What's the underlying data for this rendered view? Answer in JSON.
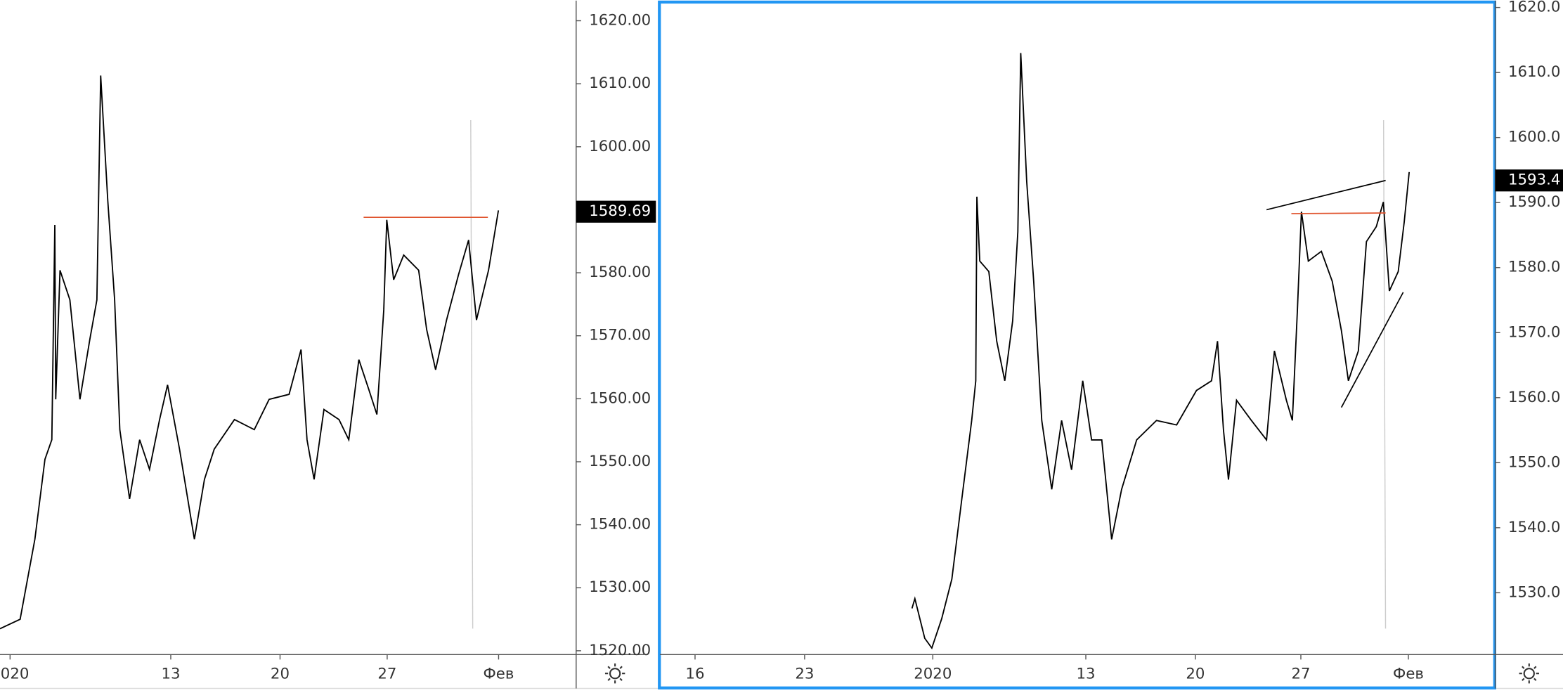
{
  "chart_data": [
    {
      "type": "line",
      "color": "#000000",
      "x": [
        -0.47,
        0.47,
        1.16,
        1.63,
        1.95,
        2.09,
        2.13,
        2.33,
        2.79,
        3.26,
        3.72,
        4.05,
        4.23,
        4.56,
        4.88,
        5.12,
        5.58,
        6.05,
        6.51,
        6.98,
        7.35,
        7.91,
        8.6,
        9.07,
        9.53,
        10.47,
        11.4,
        12.09,
        13.02,
        13.58,
        13.86,
        14.19,
        14.65,
        15.35,
        15.81,
        16.28,
        16.74,
        17.12,
        17.44,
        17.58,
        17.9,
        18.37,
        19.07,
        19.44,
        19.86,
        20.37,
        20.93,
        21.4,
        21.77,
        22.33,
        22.79
      ],
      "values": [
        1523.5,
        1525,
        1537.7,
        1550.4,
        1553.5,
        1587.6,
        1559.9,
        1580.4,
        1575.7,
        1559.9,
        1569.4,
        1575.7,
        1611.3,
        1591.5,
        1575.7,
        1555.1,
        1544.1,
        1553.5,
        1548.8,
        1556.7,
        1562.2,
        1552,
        1537.7,
        1547.2,
        1552,
        1556.7,
        1555.1,
        1559.9,
        1560.7,
        1567.8,
        1553.5,
        1547.2,
        1558.3,
        1556.7,
        1553.5,
        1566.2,
        1561.5,
        1557.5,
        1574.1,
        1588.4,
        1578.9,
        1582.8,
        1580.4,
        1571,
        1564.6,
        1572.5,
        1579.7,
        1585.2,
        1572.5,
        1580.4,
        1589.9
      ],
      "xlim": [
        -0.47,
        26.42
      ],
      "ylim": [
        1519.4,
        1623.2
      ],
      "xticks": [
        {
          "value": 0,
          "label": "2020"
        },
        {
          "value": 7.5,
          "label": "13"
        },
        {
          "value": 12.6,
          "label": "20"
        },
        {
          "value": 17.6,
          "label": "27"
        },
        {
          "value": 22.8,
          "label": "Фев"
        }
      ],
      "yticks": [
        {
          "value": 1520,
          "label": "1520.00"
        },
        {
          "value": 1530,
          "label": "1530.00"
        },
        {
          "value": 1540,
          "label": "1540.00"
        },
        {
          "value": 1550,
          "label": "1550.00"
        },
        {
          "value": 1560,
          "label": "1560.00"
        },
        {
          "value": 1570,
          "label": "1570.00"
        },
        {
          "value": 1580,
          "label": "1580.00"
        },
        {
          "value": 1590,
          "label": "1590.00"
        },
        {
          "value": 1600,
          "label": "1600.00"
        },
        {
          "value": 1610,
          "label": "1610.00"
        },
        {
          "value": 1620,
          "label": "1620.00"
        }
      ],
      "last_price": 1589.69,
      "drawings": [
        {
          "color": "#e0542e",
          "x": [
            16.5,
            22.3
          ],
          "values": [
            1588.8,
            1588.8
          ]
        }
      ],
      "marker_x": 21.5
    },
    {
      "type": "line",
      "color": "#000000",
      "x": [
        -1.01,
        -0.87,
        -0.39,
        -0.05,
        0.43,
        0.92,
        1.4,
        1.88,
        2.08,
        2.13,
        2.27,
        2.71,
        3.09,
        3.48,
        3.86,
        4.11,
        4.25,
        4.54,
        4.88,
        5.27,
        5.75,
        6.23,
        6.71,
        7.25,
        7.68,
        8.17,
        8.65,
        9.13,
        9.86,
        10.82,
        11.79,
        12.75,
        13.48,
        13.77,
        14.06,
        14.3,
        14.69,
        15.41,
        16.14,
        16.52,
        17.1,
        17.39,
        17.63,
        17.83,
        18.16,
        18.79,
        19.32,
        19.76,
        20.1,
        20.58,
        20.97,
        21.45,
        21.79,
        22.08,
        22.51,
        22.8,
        23.04
      ],
      "values": [
        1527.6,
        1529.1,
        1523,
        1521.5,
        1526,
        1532.1,
        1544.3,
        1556.5,
        1562.6,
        1590.9,
        1581,
        1579.4,
        1568.7,
        1562.6,
        1571.8,
        1585.5,
        1613,
        1593.2,
        1577.9,
        1556.5,
        1545.9,
        1556.5,
        1548.9,
        1562.6,
        1553.5,
        1553.5,
        1538.2,
        1545.9,
        1553.5,
        1556.5,
        1555.8,
        1561.1,
        1562.6,
        1568.7,
        1555,
        1547.4,
        1559.6,
        1556.5,
        1553.5,
        1567.2,
        1559.6,
        1556.5,
        1573.3,
        1588.6,
        1581,
        1582.5,
        1577.9,
        1570.3,
        1562.6,
        1567.2,
        1584,
        1586.3,
        1590.1,
        1576.4,
        1579.4,
        1587,
        1594.7
      ],
      "xlim": [
        -13.2,
        27.2
      ],
      "ylim": [
        1520.5,
        1620.6
      ],
      "xticks": [
        {
          "value": -11.5,
          "label": "16"
        },
        {
          "value": -6.2,
          "label": "23"
        },
        {
          "value": 0,
          "label": "2020"
        },
        {
          "value": 7.4,
          "label": "13"
        },
        {
          "value": 12.7,
          "label": "20"
        },
        {
          "value": 17.8,
          "label": "27"
        },
        {
          "value": 23,
          "label": "Фев"
        }
      ],
      "yticks": [
        {
          "value": 1530,
          "label": "1530.0"
        },
        {
          "value": 1540,
          "label": "1540.0"
        },
        {
          "value": 1550,
          "label": "1550.0"
        },
        {
          "value": 1560,
          "label": "1560.0"
        },
        {
          "value": 1570,
          "label": "1570.0"
        },
        {
          "value": 1580,
          "label": "1580.0"
        },
        {
          "value": 1590,
          "label": "1590.0"
        },
        {
          "value": 1600,
          "label": "1600.0"
        },
        {
          "value": 1610,
          "label": "1610.0"
        },
        {
          "value": 1620,
          "label": "1620.0"
        }
      ],
      "last_price": 1593.4,
      "drawings": [
        {
          "color": "#000000",
          "x": [
            16.14,
            21.9
          ],
          "values": [
            1588.9,
            1593.4
          ]
        },
        {
          "color": "#e0542e",
          "x": [
            17.34,
            21.9
          ],
          "values": [
            1588.3,
            1588.4
          ]
        },
        {
          "color": "#000000",
          "x": [
            19.76,
            22.75
          ],
          "values": [
            1558.5,
            1576.2
          ]
        }
      ],
      "marker_x": 21.8
    }
  ]
}
